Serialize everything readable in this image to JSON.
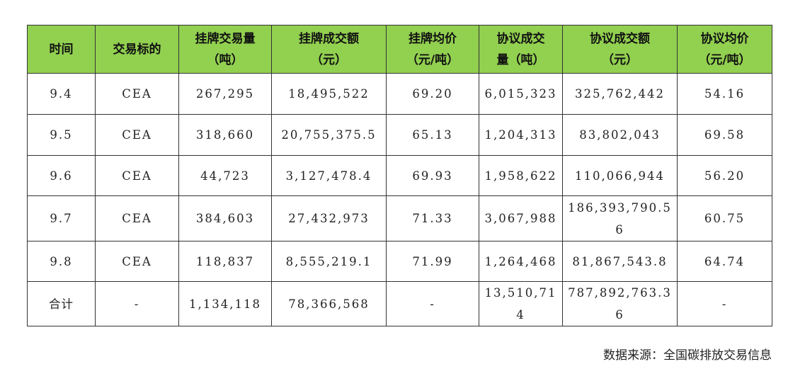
{
  "table": {
    "headers": [
      [
        "时间"
      ],
      [
        "交易标的"
      ],
      [
        "挂牌交易量",
        "（吨）"
      ],
      [
        "挂牌成交额",
        "（元）"
      ],
      [
        "挂牌均价",
        "（元/吨）"
      ],
      [
        "协议成交",
        "量（吨）"
      ],
      [
        "协议成交额",
        "（元）"
      ],
      [
        "协议均价",
        "（元/吨）"
      ]
    ],
    "rows": [
      [
        [
          "9.4"
        ],
        [
          "CEA"
        ],
        [
          "267,295"
        ],
        [
          "18,495,522"
        ],
        [
          "69.20"
        ],
        [
          "6,015,323"
        ],
        [
          "325,762,442"
        ],
        [
          "54.16"
        ]
      ],
      [
        [
          "9.5"
        ],
        [
          "CEA"
        ],
        [
          "318,660"
        ],
        [
          "20,755,375.5"
        ],
        [
          "65.13"
        ],
        [
          "1,204,313"
        ],
        [
          "83,802,043"
        ],
        [
          "69.58"
        ]
      ],
      [
        [
          "9.6"
        ],
        [
          "CEA"
        ],
        [
          "44,723"
        ],
        [
          "3,127,478.4"
        ],
        [
          "69.93"
        ],
        [
          "1,958,622"
        ],
        [
          "110,066,944"
        ],
        [
          "56.20"
        ]
      ],
      [
        [
          "9.7"
        ],
        [
          "CEA"
        ],
        [
          "384,603"
        ],
        [
          "27,432,973"
        ],
        [
          "71.33"
        ],
        [
          "3,067,988"
        ],
        [
          "186,393,790.5",
          "6"
        ],
        [
          "60.75"
        ]
      ],
      [
        [
          "9.8"
        ],
        [
          "CEA"
        ],
        [
          "118,837"
        ],
        [
          "8,555,219.1"
        ],
        [
          "71.99"
        ],
        [
          "1,264,468"
        ],
        [
          "81,867,543.8"
        ],
        [
          "64.74"
        ]
      ],
      [
        [
          "合计"
        ],
        [
          "-"
        ],
        [
          "1,134,118"
        ],
        [
          "78,366,568"
        ],
        [
          "-"
        ],
        [
          "13,510,71",
          "4"
        ],
        [
          "787,892,763.3",
          "6"
        ],
        [
          "-"
        ]
      ]
    ],
    "header_bg": "#92d050"
  },
  "source": "数据来源：全国碳排放交易信息"
}
